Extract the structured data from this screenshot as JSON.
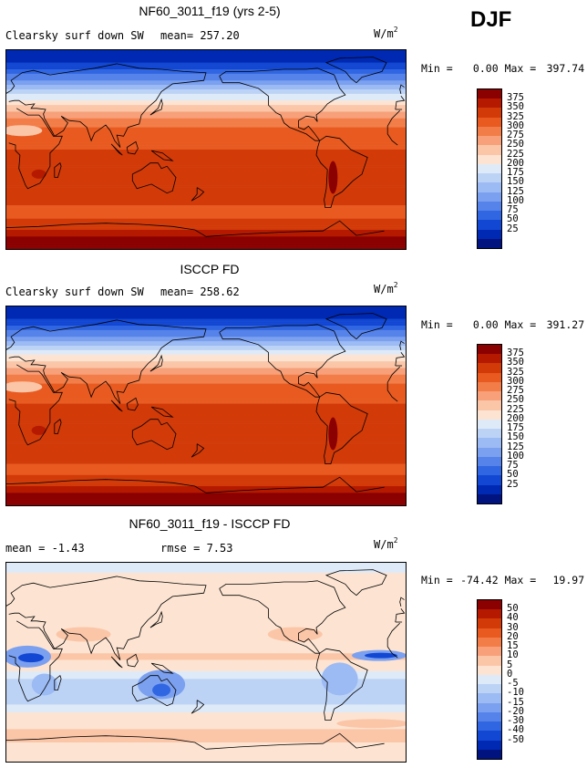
{
  "season": "DJF",
  "units_label": "W/m",
  "units_exponent": "2",
  "panels": [
    {
      "title": "NF60_3011_f19 (yrs 2-5)",
      "left_label": "Clearsky surf down SW",
      "stat_label": "mean= 257.20",
      "min_label": "Min =",
      "min_value": "0.00",
      "max_label": "Max =",
      "max_value": "397.74"
    },
    {
      "title": "ISCCP FD",
      "left_label": "Clearsky surf down SW",
      "stat_label": "mean= 258.62",
      "min_label": "Min =",
      "min_value": "0.00",
      "max_label": "Max =",
      "max_value": "391.27"
    },
    {
      "title": "NF60_3011_f19 - ISCCP FD",
      "left_label": "mean =  -1.43",
      "stat_label": "rmse =   7.53",
      "min_label": "Min =",
      "min_value": "-74.42",
      "max_label": "Max =",
      "max_value": "19.97"
    }
  ],
  "colors": {
    "abs_scale": [
      "#8b0000",
      "#b51a00",
      "#d23a08",
      "#e85a20",
      "#f27d48",
      "#f7a07a",
      "#fbc6a8",
      "#fde4d2",
      "#dfeaf8",
      "#bcd3f6",
      "#9cbaf3",
      "#7ba0ef",
      "#5683ea",
      "#3166e2",
      "#1247d3",
      "#0029b3",
      "#00137f"
    ],
    "diff_scale": [
      "#8b0000",
      "#b51a00",
      "#d23a08",
      "#e85a20",
      "#f27d48",
      "#f7a07a",
      "#fbc6a8",
      "#fde4d2",
      "#dfeaf8",
      "#bcd3f6",
      "#9cbaf3",
      "#7ba0ef",
      "#5683ea",
      "#3166e2",
      "#1247d3",
      "#0029b3",
      "#00137f"
    ],
    "coast": "#000000"
  },
  "chart_data": [
    {
      "type": "heatmap",
      "title": "NF60_3011_f19 (yrs 2-5)",
      "variable": "Clearsky surf down SW",
      "units": "W/m2",
      "mean": 257.2,
      "min": 0.0,
      "max": 397.74,
      "contour_levels": [
        25,
        50,
        75,
        100,
        125,
        150,
        175,
        200,
        225,
        250,
        275,
        300,
        325,
        350,
        375
      ],
      "colorbar_labels": [
        "375",
        "350",
        "325",
        "300",
        "275",
        "250",
        "225",
        "200",
        "175",
        "150",
        "125",
        "100",
        "75",
        "50",
        "25"
      ],
      "lat_range": [
        -90,
        90
      ],
      "lon_range": [
        0,
        360
      ],
      "zonal_profile": {
        "lat": [
          90,
          80,
          70,
          60,
          50,
          40,
          30,
          20,
          10,
          0,
          -10,
          -20,
          -30,
          -40,
          -50,
          -60,
          -70,
          -80,
          -90
        ],
        "value": [
          5,
          20,
          60,
          110,
          170,
          225,
          268,
          300,
          318,
          325,
          330,
          335,
          338,
          335,
          325,
          320,
          340,
          385,
          397
        ]
      }
    },
    {
      "type": "heatmap",
      "title": "ISCCP FD",
      "variable": "Clearsky surf down SW",
      "units": "W/m2",
      "mean": 258.62,
      "min": 0.0,
      "max": 391.27,
      "contour_levels": [
        25,
        50,
        75,
        100,
        125,
        150,
        175,
        200,
        225,
        250,
        275,
        300,
        325,
        350,
        375
      ],
      "colorbar_labels": [
        "375",
        "350",
        "325",
        "300",
        "275",
        "250",
        "225",
        "200",
        "175",
        "150",
        "125",
        "100",
        "75",
        "50",
        "25"
      ],
      "lat_range": [
        -90,
        90
      ],
      "lon_range": [
        0,
        360
      ],
      "zonal_profile": {
        "lat": [
          90,
          80,
          70,
          60,
          50,
          40,
          30,
          20,
          10,
          0,
          -10,
          -20,
          -30,
          -40,
          -50,
          -60,
          -70,
          -80,
          -90
        ],
        "value": [
          5,
          20,
          60,
          112,
          172,
          228,
          270,
          302,
          320,
          327,
          332,
          337,
          340,
          336,
          326,
          322,
          342,
          380,
          391
        ]
      }
    },
    {
      "type": "heatmap",
      "title": "NF60_3011_f19 - ISCCP FD",
      "variable": "difference",
      "units": "W/m2",
      "mean": -1.43,
      "rmse": 7.53,
      "min": -74.42,
      "max": 19.97,
      "contour_levels": [
        -50,
        -40,
        -30,
        -20,
        -15,
        -10,
        -5,
        0,
        5,
        10,
        15,
        20,
        30,
        40,
        50
      ],
      "colorbar_labels": [
        "50",
        "40",
        "30",
        "20",
        "15",
        "10",
        "5",
        "0",
        "-5",
        "-10",
        "-15",
        "-20",
        "-30",
        "-40",
        "-50"
      ],
      "lat_range": [
        -90,
        90
      ],
      "lon_range": [
        0,
        360
      ]
    }
  ]
}
